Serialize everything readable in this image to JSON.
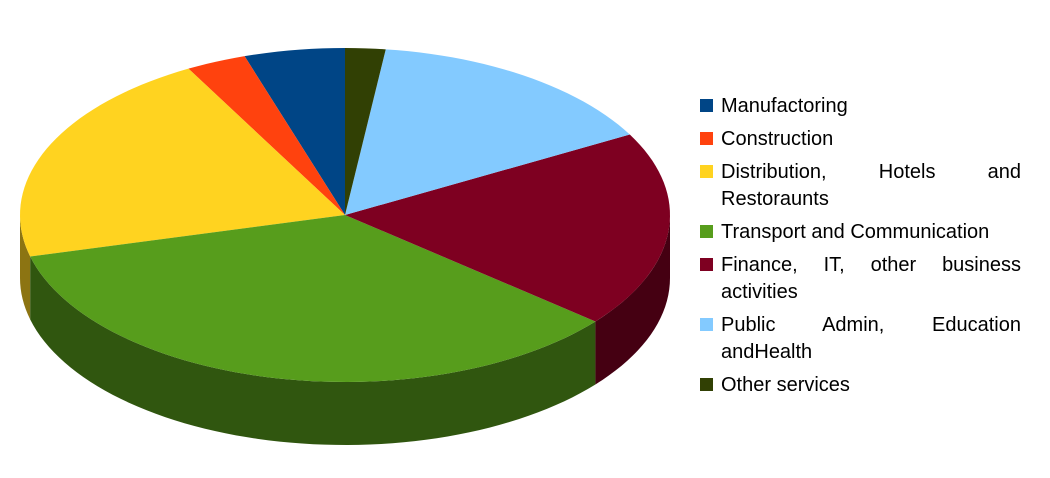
{
  "chart_data": {
    "type": "pie3d",
    "categories": [
      "Manufactoring",
      "Construction",
      "Distribution, Hotels and Restoraunts",
      "Transport and Communication",
      "Finance, IT, other business activities",
      "Public Admin, Education andHealth",
      "Other services"
    ],
    "values": [
      5,
      3,
      21,
      35,
      19,
      15,
      2
    ],
    "colors": [
      "#004586",
      "#ff420e",
      "#ffd320",
      "#579d1c",
      "#7e0021",
      "#83caff",
      "#314004"
    ],
    "legend": "right"
  }
}
